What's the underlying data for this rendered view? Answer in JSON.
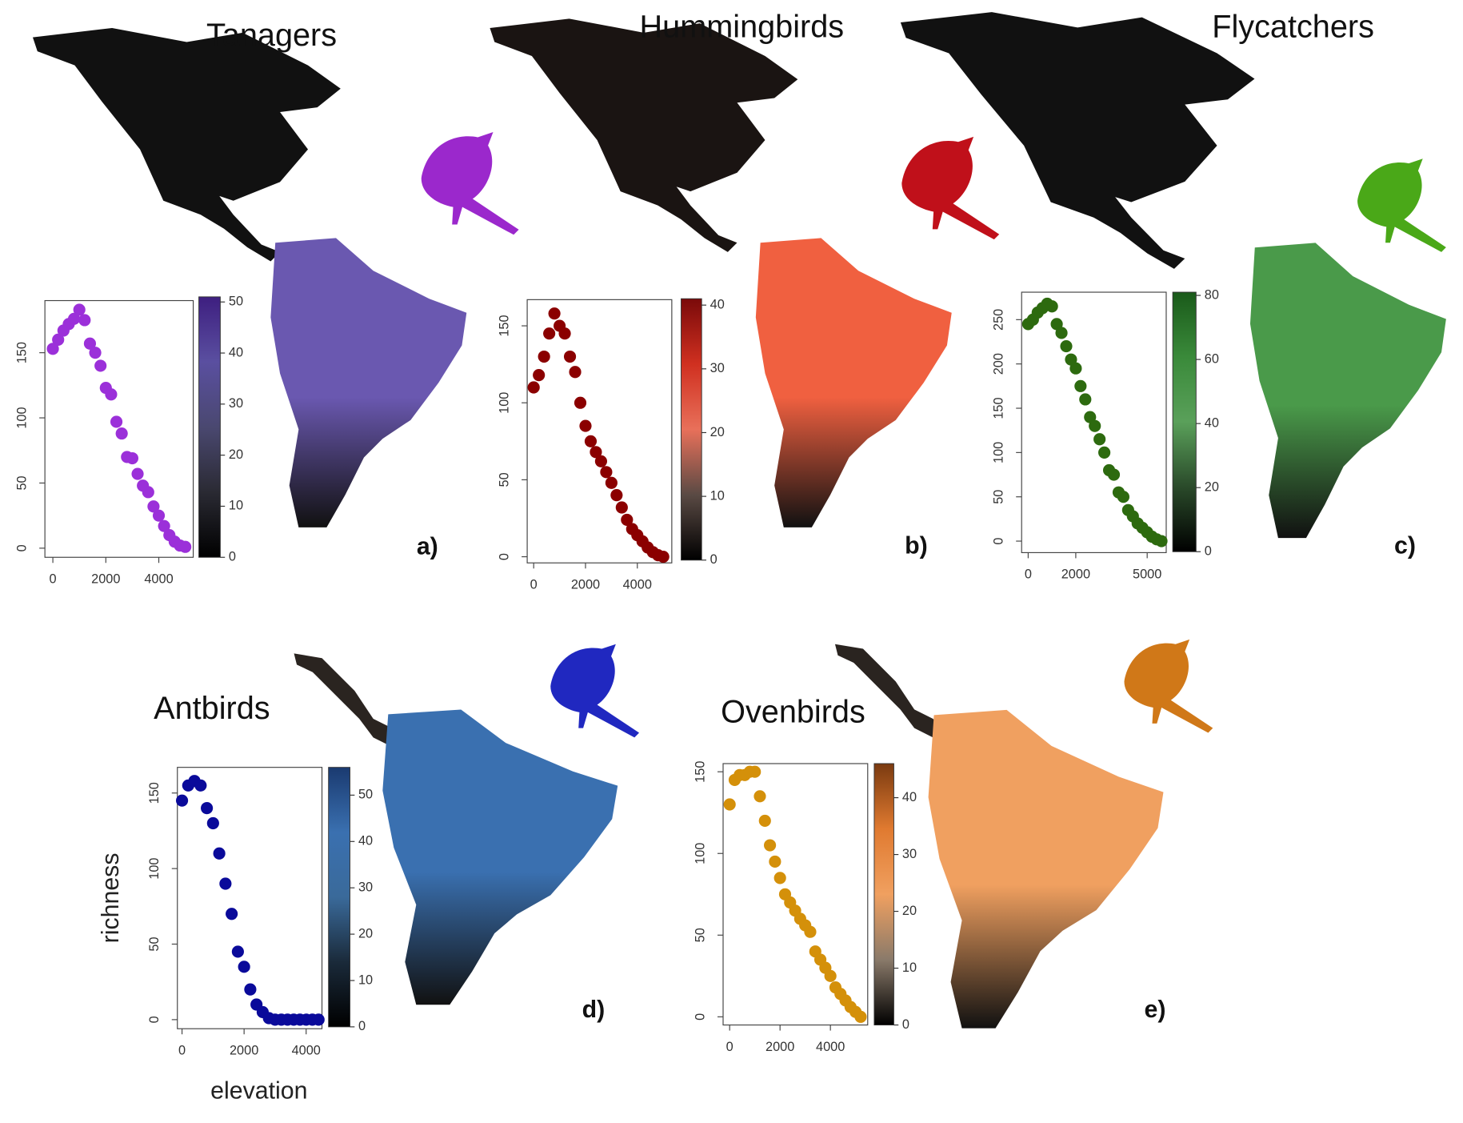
{
  "chart_data": [
    {
      "type": "scatter",
      "title": "Tanagers",
      "panel_label": "a)",
      "x": [
        0,
        200,
        400,
        600,
        800,
        1000,
        1200,
        1400,
        1600,
        1800,
        2000,
        2200,
        2400,
        2600,
        2800,
        3000,
        3200,
        3400,
        3600,
        3800,
        4000,
        4200,
        4400,
        4600,
        4800,
        5000
      ],
      "values": [
        153,
        160,
        167,
        172,
        176,
        183,
        175,
        157,
        150,
        140,
        123,
        118,
        97,
        88,
        70,
        69,
        57,
        48,
        43,
        32,
        25,
        17,
        10,
        5,
        2,
        1
      ],
      "color": "#9b30d9",
      "xlim": [
        -300,
        5300
      ],
      "ylim": [
        -7,
        190
      ],
      "xticks": [
        0,
        2000,
        4000
      ],
      "yticks": [
        0,
        50,
        100,
        150
      ],
      "colorbar": {
        "lim": [
          0,
          51
        ],
        "ticks": [
          0,
          10,
          20,
          30,
          40,
          50
        ],
        "colors": [
          "#000000",
          "#2a2a33",
          "#4a4870",
          "#5a4fa0",
          "#3e1f80"
        ]
      },
      "map_color": "#6a58b0",
      "icon_color": "#9b28cc"
    },
    {
      "type": "scatter",
      "title": "Hummingbirds",
      "panel_label": "b)",
      "x": [
        0,
        200,
        400,
        600,
        800,
        1000,
        1200,
        1400,
        1600,
        1800,
        2000,
        2200,
        2400,
        2600,
        2800,
        3000,
        3200,
        3400,
        3600,
        3800,
        4000,
        4200,
        4400,
        4600,
        4800,
        5000
      ],
      "values": [
        110,
        118,
        130,
        145,
        158,
        150,
        145,
        130,
        120,
        100,
        85,
        75,
        68,
        62,
        55,
        48,
        40,
        32,
        24,
        18,
        14,
        10,
        6,
        3,
        1,
        0
      ],
      "color": "#8b0000",
      "xlim": [
        -250,
        5330
      ],
      "ylim": [
        -4,
        167
      ],
      "xticks": [
        0,
        2000,
        4000
      ],
      "yticks": [
        0,
        50,
        100,
        150
      ],
      "colorbar": {
        "lim": [
          0,
          41
        ],
        "ticks": [
          0,
          10,
          20,
          30,
          40
        ],
        "colors": [
          "#000000",
          "#5a4a44",
          "#e8705a",
          "#d03020",
          "#7a0a0a"
        ]
      },
      "map_color": "#f06040",
      "icon_color": "#c0101a"
    },
    {
      "type": "scatter",
      "title": "Flycatchers",
      "panel_label": "c)",
      "x": [
        0,
        200,
        400,
        600,
        800,
        1000,
        1200,
        1400,
        1600,
        1800,
        2000,
        2200,
        2400,
        2600,
        2800,
        3000,
        3200,
        3400,
        3600,
        3800,
        4000,
        4200,
        4400,
        4600,
        4800,
        5000,
        5200,
        5400,
        5600
      ],
      "values": [
        245,
        250,
        258,
        263,
        268,
        265,
        245,
        235,
        220,
        205,
        195,
        175,
        160,
        140,
        130,
        115,
        100,
        80,
        75,
        55,
        50,
        35,
        28,
        20,
        15,
        10,
        5,
        2,
        0
      ],
      "color": "#2d6a0f",
      "xlim": [
        -275,
        5800
      ],
      "ylim": [
        -13,
        281
      ],
      "xticks": [
        0,
        2000,
        5000
      ],
      "yticks": [
        0,
        50,
        100,
        150,
        200,
        250
      ],
      "colorbar": {
        "lim": [
          0,
          81
        ],
        "ticks": [
          0,
          20,
          40,
          60,
          80
        ],
        "colors": [
          "#000000",
          "#2a4a2a",
          "#5aa05a",
          "#3a8a3a",
          "#1a5a1a"
        ]
      },
      "map_color": "#4a9a4a",
      "icon_color": "#4aa818"
    },
    {
      "type": "scatter",
      "title": "Antbirds",
      "panel_label": "d)",
      "xlabel": "elevation",
      "ylabel": "richness",
      "x": [
        0,
        200,
        400,
        600,
        800,
        1000,
        1200,
        1400,
        1600,
        1800,
        2000,
        2200,
        2400,
        2600,
        2800,
        3000,
        3200,
        3400,
        3600,
        3800,
        4000,
        4200,
        4400
      ],
      "values": [
        145,
        155,
        158,
        155,
        140,
        130,
        110,
        90,
        70,
        45,
        35,
        20,
        10,
        5,
        1,
        0,
        0,
        0,
        0,
        0,
        0,
        0,
        0
      ],
      "color": "#0a0a9a",
      "xlim": [
        -150,
        4510
      ],
      "ylim": [
        -6,
        167
      ],
      "xticks": [
        0,
        2000,
        4000
      ],
      "yticks": [
        0,
        50,
        100,
        150
      ],
      "colorbar": {
        "lim": [
          0,
          56
        ],
        "ticks": [
          0,
          10,
          20,
          30,
          40,
          50
        ],
        "colors": [
          "#000000",
          "#1a2a3a",
          "#3a6a9a",
          "#3a70b0",
          "#1a3a70"
        ]
      },
      "map_color": "#3a70b0",
      "icon_color": "#2028c0"
    },
    {
      "type": "scatter",
      "title": "Ovenbirds",
      "panel_label": "e)",
      "x": [
        0,
        200,
        400,
        600,
        800,
        1000,
        1200,
        1400,
        1600,
        1800,
        2000,
        2200,
        2400,
        2600,
        2800,
        3000,
        3200,
        3400,
        3600,
        3800,
        4000,
        4200,
        4400,
        4600,
        4800,
        5000,
        5200
      ],
      "values": [
        130,
        145,
        148,
        148,
        150,
        150,
        135,
        120,
        105,
        95,
        85,
        75,
        70,
        65,
        60,
        56,
        52,
        40,
        35,
        30,
        25,
        18,
        14,
        10,
        6,
        3,
        0
      ],
      "color": "#d4900a",
      "xlim": [
        -260,
        5480
      ],
      "ylim": [
        -5,
        155
      ],
      "xticks": [
        0,
        2000,
        4000
      ],
      "yticks": [
        0,
        50,
        100,
        150
      ],
      "colorbar": {
        "lim": [
          0,
          46
        ],
        "ticks": [
          0,
          10,
          20,
          30,
          40
        ],
        "colors": [
          "#000000",
          "#8a7a6a",
          "#f0a060",
          "#e07a30",
          "#7a3a10"
        ]
      },
      "map_color": "#f0a060",
      "icon_color": "#d07818"
    }
  ]
}
